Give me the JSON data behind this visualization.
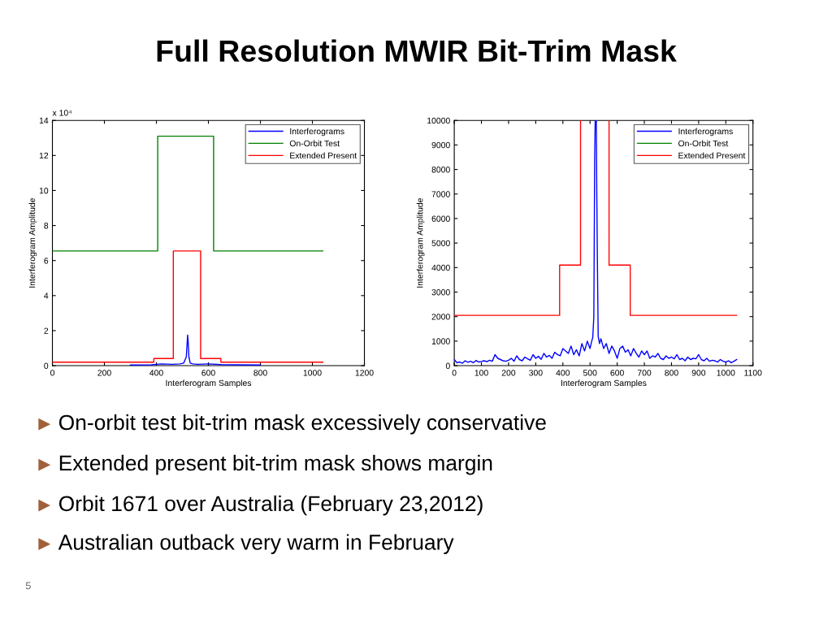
{
  "chart_data": [
    {
      "type": "line",
      "xlabel": "Interferogram Samples",
      "ylabel": "Interferogram Amplitude",
      "annotations": [
        "x 10⁴"
      ],
      "xlim": [
        0,
        1200
      ],
      "xticks": [
        0,
        200,
        400,
        600,
        800,
        1000,
        1200
      ],
      "ylim": [
        0,
        14
      ],
      "yticks": [
        0,
        2,
        4,
        6,
        8,
        10,
        12,
        14
      ],
      "grid": false,
      "legend": "top right",
      "series": [
        {
          "name": "Interferograms",
          "color": "#0000ff",
          "x": [
            300,
            380,
            420,
            460,
            490,
            505,
            515,
            520,
            522,
            525,
            530,
            540,
            560,
            600,
            650,
            700,
            800
          ],
          "values": [
            0.04,
            0.05,
            0.1,
            0.08,
            0.1,
            0.15,
            0.5,
            1.75,
            1.4,
            0.5,
            0.15,
            0.1,
            0.08,
            0.1,
            0.06,
            0.05,
            0.04
          ]
        },
        {
          "name": "On-Orbit Test",
          "color": "#008000",
          "x": [
            0,
            405,
            405,
            620,
            620,
            1040
          ],
          "values": [
            6.55,
            6.55,
            13.1,
            13.1,
            6.55,
            6.55
          ]
        },
        {
          "name": "Extended Present",
          "color": "#ff0000",
          "x": [
            0,
            390,
            390,
            465,
            465,
            570,
            570,
            648,
            648,
            1040
          ],
          "values": [
            0.2,
            0.2,
            0.41,
            0.41,
            6.55,
            6.55,
            0.41,
            0.41,
            0.2,
            0.2
          ]
        }
      ]
    },
    {
      "type": "line",
      "xlabel": "Interferogram Samples",
      "ylabel": "Interferogram Amplitude",
      "xlim": [
        0,
        1100
      ],
      "xticks": [
        0,
        100,
        200,
        300,
        400,
        500,
        600,
        700,
        800,
        900,
        1000,
        1100
      ],
      "ylim": [
        0,
        10000
      ],
      "yticks": [
        0,
        1000,
        2000,
        3000,
        4000,
        5000,
        6000,
        7000,
        8000,
        9000,
        10000
      ],
      "grid": false,
      "legend": "top right",
      "series": [
        {
          "name": "Interferograms",
          "color": "#0000ff",
          "x": [
            0,
            10,
            20,
            30,
            40,
            50,
            60,
            70,
            80,
            90,
            100,
            110,
            120,
            130,
            140,
            150,
            160,
            170,
            180,
            190,
            200,
            210,
            220,
            230,
            240,
            250,
            260,
            270,
            280,
            290,
            300,
            310,
            320,
            330,
            340,
            350,
            360,
            370,
            380,
            390,
            400,
            410,
            420,
            430,
            440,
            450,
            460,
            470,
            480,
            490,
            500,
            505,
            510,
            514,
            517,
            519,
            523,
            525,
            527,
            530,
            535,
            540,
            550,
            560,
            570,
            580,
            590,
            600,
            610,
            620,
            630,
            640,
            650,
            660,
            670,
            680,
            690,
            700,
            710,
            720,
            730,
            740,
            750,
            760,
            770,
            780,
            790,
            800,
            810,
            820,
            830,
            840,
            850,
            860,
            870,
            880,
            890,
            900,
            910,
            920,
            930,
            940,
            950,
            960,
            970,
            980,
            990,
            1000,
            1010,
            1020,
            1030,
            1040
          ],
          "values": [
            250,
            120,
            150,
            100,
            200,
            140,
            180,
            120,
            210,
            150,
            170,
            200,
            160,
            220,
            180,
            450,
            300,
            250,
            200,
            180,
            220,
            300,
            180,
            400,
            250,
            200,
            350,
            280,
            220,
            450,
            300,
            380,
            260,
            500,
            350,
            420,
            300,
            550,
            450,
            400,
            700,
            600,
            500,
            800,
            450,
            650,
            400,
            900,
            600,
            1000,
            700,
            950,
            1150,
            2000,
            8300,
            10000,
            10000,
            6900,
            4400,
            1200,
            900,
            1100,
            700,
            900,
            500,
            800,
            600,
            300,
            700,
            800,
            550,
            650,
            400,
            700,
            500,
            350,
            600,
            450,
            600,
            300,
            400,
            350,
            500,
            300,
            250,
            400,
            300,
            350,
            280,
            450,
            250,
            300,
            200,
            350,
            250,
            300,
            280,
            450,
            250,
            200,
            300,
            180,
            220,
            200,
            150,
            250,
            180,
            150,
            200,
            120,
            180,
            250
          ]
        },
        {
          "name": "On-Orbit Test",
          "color": "#008000"
        },
        {
          "name": "Extended Present",
          "color": "#ff0000",
          "x": [
            0,
            388,
            388,
            465,
            465,
            517,
            570,
            570,
            648,
            648,
            1040
          ],
          "values": [
            2050,
            2050,
            4100,
            4100,
            10000,
            null,
            10000,
            4100,
            4100,
            2050,
            2050
          ]
        }
      ]
    },
    {
      "type": "other",
      "title": "Full Resolution MWIR Bit-Trim Mask",
      "annotations": [
        "On-orbit test bit-trim mask excessively conservative",
        "Extended present bit-trim mask shows margin",
        "Orbit 1671 over Australia (February 23,2012)",
        "Australian outback very warm in February",
        "5"
      ]
    }
  ]
}
